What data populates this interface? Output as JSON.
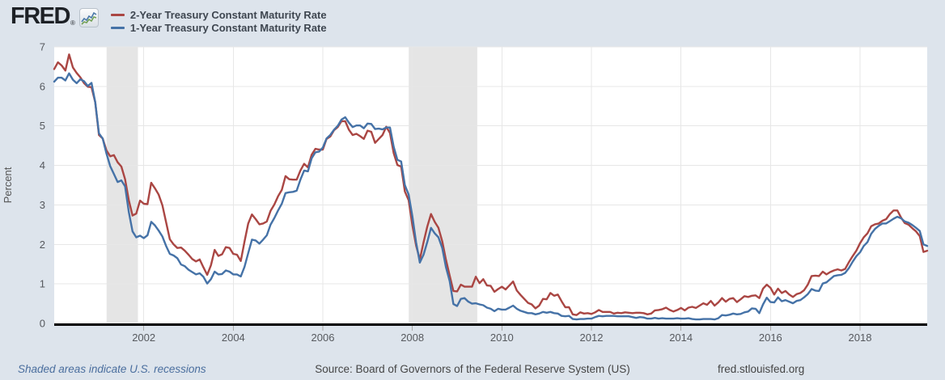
{
  "header": {
    "logo_text": "FRED",
    "logo_registered": "®"
  },
  "footer": {
    "recession_note": "Shaded areas indicate U.S. recessions",
    "source": "Source: Board of Governors of the Federal Reserve System (US)",
    "site": "fred.stlouisfed.org"
  },
  "colors": {
    "background": "#dde4ec",
    "plot_background": "#ffffff",
    "gridline": "#e7e7e7",
    "recession_band": "#e5e5e5",
    "axis_line": "#000000",
    "tick_label": "#56595e",
    "axis_title": "#555555",
    "tick_mark": "#a9a9a9",
    "series_2yr": "#aa4643",
    "series_1yr": "#4572a7"
  },
  "chart_data": {
    "type": "line",
    "title": "",
    "xlabel": "",
    "ylabel": "Percent",
    "grid": true,
    "legend_position": "top-left",
    "xlim": [
      2000.0,
      2019.5
    ],
    "ylim": [
      0,
      7
    ],
    "y_ticks": [
      0,
      1,
      2,
      3,
      4,
      5,
      6,
      7
    ],
    "x_ticks": [
      2002,
      2004,
      2006,
      2008,
      2010,
      2012,
      2014,
      2016,
      2018
    ],
    "x_start": 2000.0,
    "x_step": 0.0833333,
    "frequency": "monthly",
    "recession_bands": [
      [
        2001.17,
        2001.87
      ],
      [
        2007.92,
        2009.45
      ]
    ],
    "series": [
      {
        "name": "2-Year Treasury Constant Maturity Rate",
        "color": "#aa4643",
        "values": [
          6.44,
          6.61,
          6.53,
          6.4,
          6.81,
          6.48,
          6.34,
          6.23,
          6.08,
          5.99,
          5.98,
          5.6,
          4.77,
          4.68,
          4.38,
          4.23,
          4.26,
          4.08,
          3.97,
          3.65,
          3.12,
          2.73,
          2.78,
          3.11,
          3.03,
          3.02,
          3.56,
          3.42,
          3.26,
          2.99,
          2.56,
          2.13,
          2.0,
          1.91,
          1.92,
          1.84,
          1.74,
          1.63,
          1.57,
          1.62,
          1.42,
          1.23,
          1.47,
          1.86,
          1.71,
          1.75,
          1.93,
          1.91,
          1.76,
          1.74,
          1.58,
          2.07,
          2.53,
          2.76,
          2.64,
          2.51,
          2.53,
          2.58,
          2.85,
          3.01,
          3.22,
          3.38,
          3.73,
          3.65,
          3.64,
          3.64,
          3.87,
          4.04,
          3.95,
          4.27,
          4.42,
          4.4,
          4.4,
          4.67,
          4.73,
          4.89,
          4.97,
          5.12,
          5.12,
          4.9,
          4.77,
          4.8,
          4.74,
          4.67,
          4.88,
          4.85,
          4.57,
          4.67,
          4.77,
          4.98,
          4.82,
          4.31,
          4.01,
          3.97,
          3.34,
          3.12,
          2.48,
          1.97,
          1.62,
          2.05,
          2.45,
          2.77,
          2.57,
          2.42,
          2.08,
          1.61,
          1.21,
          0.82,
          0.81,
          0.98,
          0.93,
          0.93,
          0.93,
          1.18,
          1.02,
          1.12,
          0.96,
          0.95,
          0.8,
          0.87,
          0.93,
          0.86,
          0.96,
          1.06,
          0.83,
          0.72,
          0.62,
          0.52,
          0.48,
          0.38,
          0.45,
          0.62,
          0.61,
          0.77,
          0.7,
          0.73,
          0.56,
          0.41,
          0.41,
          0.23,
          0.21,
          0.28,
          0.25,
          0.26,
          0.24,
          0.28,
          0.34,
          0.29,
          0.29,
          0.29,
          0.25,
          0.27,
          0.26,
          0.28,
          0.27,
          0.26,
          0.27,
          0.27,
          0.26,
          0.23,
          0.25,
          0.33,
          0.34,
          0.36,
          0.4,
          0.34,
          0.3,
          0.34,
          0.39,
          0.33,
          0.4,
          0.42,
          0.39,
          0.45,
          0.51,
          0.47,
          0.57,
          0.45,
          0.53,
          0.64,
          0.55,
          0.62,
          0.64,
          0.54,
          0.61,
          0.69,
          0.67,
          0.7,
          0.71,
          0.64,
          0.88,
          0.98,
          0.9,
          0.73,
          0.88,
          0.77,
          0.82,
          0.73,
          0.67,
          0.74,
          0.77,
          0.84,
          0.98,
          1.2,
          1.21,
          1.2,
          1.31,
          1.24,
          1.3,
          1.34,
          1.37,
          1.34,
          1.38,
          1.55,
          1.7,
          1.84,
          2.03,
          2.18,
          2.28,
          2.46,
          2.51,
          2.53,
          2.6,
          2.64,
          2.77,
          2.86,
          2.86,
          2.68,
          2.54,
          2.5,
          2.41,
          2.33,
          2.21,
          1.81,
          1.84
        ]
      },
      {
        "name": "1-Year Treasury Constant Maturity Rate",
        "color": "#4572a7",
        "values": [
          6.12,
          6.22,
          6.22,
          6.15,
          6.33,
          6.17,
          6.08,
          6.18,
          6.13,
          6.01,
          6.09,
          5.6,
          4.81,
          4.68,
          4.3,
          3.98,
          3.78,
          3.58,
          3.62,
          3.47,
          2.82,
          2.33,
          2.18,
          2.22,
          2.16,
          2.23,
          2.57,
          2.48,
          2.35,
          2.2,
          1.96,
          1.76,
          1.72,
          1.65,
          1.49,
          1.45,
          1.36,
          1.3,
          1.24,
          1.27,
          1.18,
          1.01,
          1.12,
          1.31,
          1.24,
          1.25,
          1.34,
          1.31,
          1.24,
          1.24,
          1.19,
          1.43,
          1.78,
          2.12,
          2.1,
          2.02,
          2.12,
          2.23,
          2.5,
          2.67,
          2.86,
          3.03,
          3.3,
          3.32,
          3.33,
          3.36,
          3.64,
          3.87,
          3.85,
          4.18,
          4.33,
          4.35,
          4.45,
          4.68,
          4.77,
          4.9,
          5.0,
          5.16,
          5.22,
          5.08,
          4.97,
          5.01,
          5.01,
          4.94,
          5.06,
          5.05,
          4.92,
          4.93,
          4.91,
          4.96,
          4.96,
          4.47,
          4.14,
          4.1,
          3.5,
          3.26,
          2.71,
          2.05,
          1.54,
          1.74,
          2.06,
          2.42,
          2.28,
          2.18,
          1.91,
          1.42,
          1.07,
          0.49,
          0.44,
          0.62,
          0.64,
          0.55,
          0.5,
          0.51,
          0.48,
          0.46,
          0.4,
          0.37,
          0.31,
          0.37,
          0.35,
          0.35,
          0.4,
          0.45,
          0.37,
          0.32,
          0.29,
          0.26,
          0.26,
          0.23,
          0.25,
          0.29,
          0.27,
          0.29,
          0.26,
          0.25,
          0.19,
          0.18,
          0.19,
          0.11,
          0.1,
          0.11,
          0.11,
          0.12,
          0.12,
          0.16,
          0.19,
          0.18,
          0.19,
          0.19,
          0.19,
          0.18,
          0.18,
          0.18,
          0.18,
          0.16,
          0.14,
          0.16,
          0.15,
          0.12,
          0.12,
          0.14,
          0.12,
          0.13,
          0.12,
          0.12,
          0.12,
          0.13,
          0.12,
          0.12,
          0.13,
          0.11,
          0.1,
          0.1,
          0.11,
          0.11,
          0.11,
          0.1,
          0.13,
          0.21,
          0.2,
          0.22,
          0.25,
          0.23,
          0.24,
          0.28,
          0.3,
          0.38,
          0.37,
          0.26,
          0.48,
          0.65,
          0.54,
          0.53,
          0.66,
          0.56,
          0.59,
          0.55,
          0.51,
          0.57,
          0.59,
          0.66,
          0.74,
          0.87,
          0.83,
          0.82,
          1.01,
          1.04,
          1.12,
          1.2,
          1.22,
          1.23,
          1.28,
          1.4,
          1.56,
          1.7,
          1.8,
          1.96,
          2.06,
          2.27,
          2.39,
          2.47,
          2.53,
          2.53,
          2.59,
          2.65,
          2.7,
          2.66,
          2.58,
          2.55,
          2.49,
          2.42,
          2.34,
          2.0,
          1.96
        ]
      }
    ]
  }
}
